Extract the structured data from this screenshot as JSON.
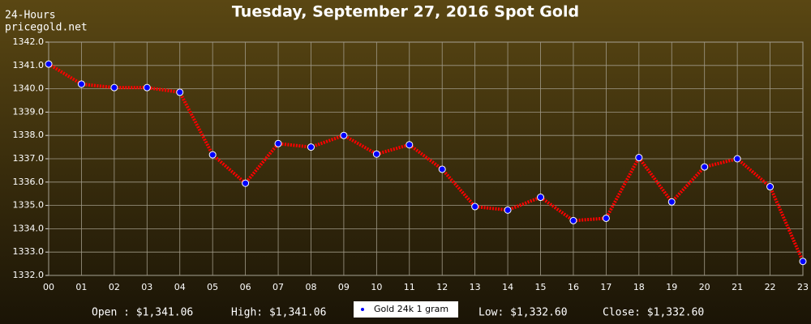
{
  "chart_data": {
    "type": "line",
    "title": "Tuesday, September 27, 2016 Spot Gold",
    "corner_text": [
      "24-Hours",
      "pricegold.net"
    ],
    "categories": [
      "00",
      "01",
      "02",
      "03",
      "04",
      "05",
      "06",
      "07",
      "08",
      "09",
      "10",
      "11",
      "12",
      "13",
      "14",
      "15",
      "16",
      "17",
      "18",
      "19",
      "20",
      "21",
      "22",
      "23"
    ],
    "series": [
      {
        "name": "Gold 24k 1 gram",
        "color": "#ff0000",
        "marker_color": "#0000ff",
        "values": [
          1341.06,
          1340.2,
          1340.05,
          1340.05,
          1339.85,
          1337.17,
          1335.95,
          1337.65,
          1337.5,
          1338.0,
          1337.2,
          1337.6,
          1336.55,
          1334.95,
          1334.8,
          1335.35,
          1334.35,
          1334.45,
          1337.05,
          1335.15,
          1336.65,
          1337.0,
          1335.8,
          1332.6
        ]
      }
    ],
    "ylim": [
      1332.0,
      1342.0
    ],
    "yticks": [
      {
        "value": 1332,
        "label": "1332.0"
      },
      {
        "value": 1333,
        "label": "1333.0"
      },
      {
        "value": 1334,
        "label": "1334.0"
      },
      {
        "value": 1335,
        "label": "1335.0"
      },
      {
        "value": 1336,
        "label": "1336.0"
      },
      {
        "value": 1337,
        "label": "1337.0"
      },
      {
        "value": 1338,
        "label": "1338.0"
      },
      {
        "value": 1339,
        "label": "1339.0"
      },
      {
        "value": 1340,
        "label": "1340.0"
      },
      {
        "value": 1341,
        "label": "1341.0"
      },
      {
        "value": 1342,
        "label": "1342.0"
      }
    ],
    "grid": true,
    "stats": [
      "Open : $1,341.06",
      "High: $1,341.06",
      "Low: $1,332.60",
      "Close: $1,332.60"
    ]
  }
}
